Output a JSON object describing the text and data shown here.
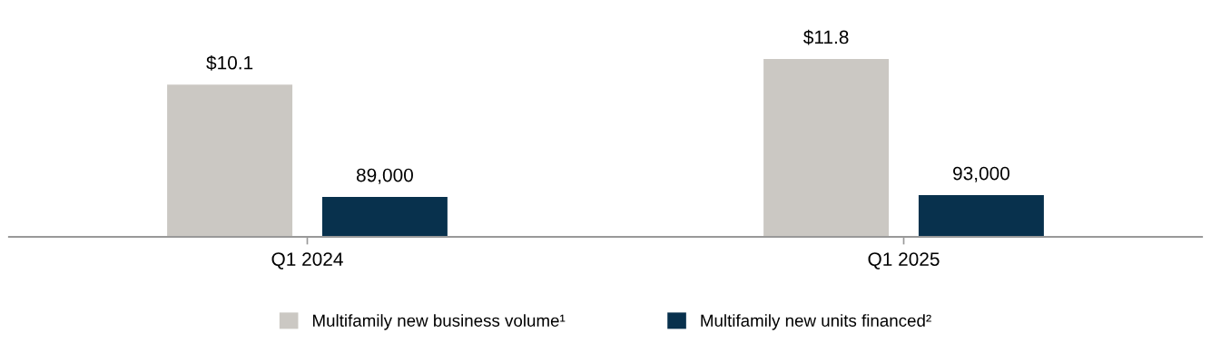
{
  "chart_data": {
    "type": "bar",
    "categories": [
      "Q1 2024",
      "Q1 2025"
    ],
    "series": [
      {
        "name": "Multifamily new business volume¹",
        "color": "#cbc8c3",
        "values": [
          10.1,
          11.8
        ],
        "value_labels": [
          "$10.1",
          "$11.8"
        ]
      },
      {
        "name": "Multifamily new units financed²",
        "color": "#08314d",
        "values": [
          89000,
          93000
        ],
        "value_labels": [
          "89,000",
          "93,000"
        ],
        "axis": "y2"
      }
    ],
    "tick_labels": "x",
    "legend": "bottom"
  }
}
